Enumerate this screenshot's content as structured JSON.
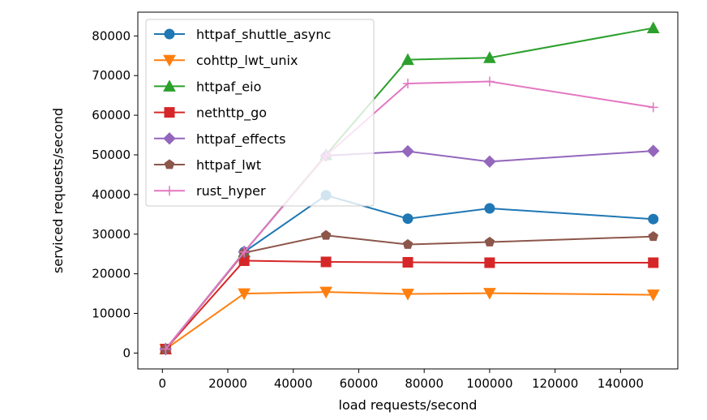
{
  "chart_data": {
    "type": "line",
    "xlabel": "load requests/second",
    "ylabel": "serviced requests/second",
    "xlim": [
      -7500,
      157500
    ],
    "ylim": [
      -4000,
      86000
    ],
    "xticks": [
      0,
      20000,
      40000,
      60000,
      80000,
      100000,
      120000,
      140000
    ],
    "yticks": [
      0,
      10000,
      20000,
      30000,
      40000,
      50000,
      60000,
      70000,
      80000
    ],
    "grid": false,
    "legend_position": "top-left",
    "series": [
      {
        "name": "httpaf_shuttle_async",
        "color": "#1f77b4",
        "marker": "circle",
        "x": [
          1000,
          25000,
          50000,
          75000,
          100000,
          150000
        ],
        "y": [
          1000,
          25500,
          39800,
          33900,
          36500,
          33800
        ]
      },
      {
        "name": "cohttp_lwt_unix",
        "color": "#ff7f0e",
        "marker": "triangle-down",
        "x": [
          1000,
          25000,
          50000,
          75000,
          100000,
          150000
        ],
        "y": [
          1000,
          15000,
          15400,
          14900,
          15100,
          14700
        ]
      },
      {
        "name": "httpaf_eio",
        "color": "#2ca02c",
        "marker": "triangle-up",
        "x": [
          1000,
          25000,
          50000,
          75000,
          100000,
          150000
        ],
        "y": [
          1000,
          25500,
          50000,
          74000,
          74500,
          82000
        ]
      },
      {
        "name": "nethttp_go",
        "color": "#d62728",
        "marker": "square",
        "x": [
          1000,
          25000,
          50000,
          75000,
          100000,
          150000
        ],
        "y": [
          1000,
          23300,
          23000,
          22900,
          22800,
          22800
        ]
      },
      {
        "name": "httpaf_effects",
        "color": "#9467bd",
        "marker": "diamond",
        "x": [
          1000,
          25000,
          50000,
          75000,
          100000,
          150000
        ],
        "y": [
          1000,
          25500,
          49800,
          50900,
          48300,
          51000
        ]
      },
      {
        "name": "httpaf_lwt",
        "color": "#8c564b",
        "marker": "pentagon",
        "x": [
          1000,
          25000,
          50000,
          75000,
          100000,
          150000
        ],
        "y": [
          1000,
          25300,
          29700,
          27400,
          28000,
          29400
        ]
      },
      {
        "name": "rust_hyper",
        "color": "#e377c2",
        "marker": "plus",
        "x": [
          1000,
          25000,
          50000,
          75000,
          100000,
          150000
        ],
        "y": [
          1000,
          25500,
          49800,
          68000,
          68500,
          62000
        ]
      }
    ]
  }
}
